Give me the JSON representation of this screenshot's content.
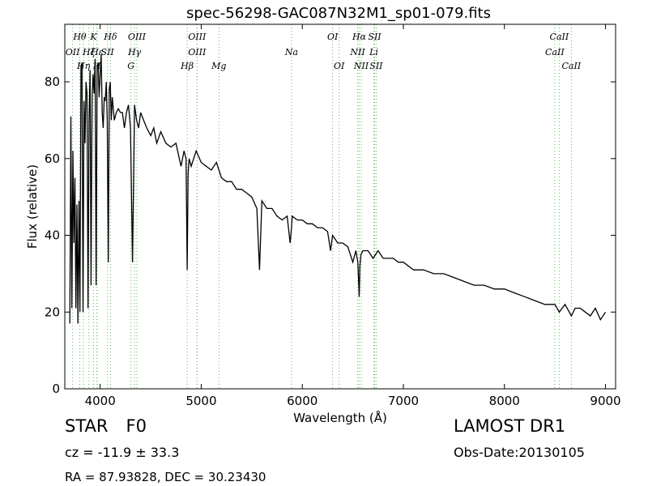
{
  "chart_data": {
    "type": "line",
    "title": "spec-56298-GAC087N32M1_sp01-079.fits",
    "xlabel": "Wavelength (Å)",
    "ylabel": "Flux (relative)",
    "xlim": [
      3650,
      9100
    ],
    "ylim": [
      0,
      95
    ],
    "xticks": [
      4000,
      5000,
      6000,
      7000,
      8000,
      9000
    ],
    "yticks": [
      0,
      20,
      40,
      60,
      80
    ],
    "grid": false,
    "series": [
      {
        "color": "#000000",
        "x": [
          3700,
          3710,
          3720,
          3730,
          3740,
          3750,
          3760,
          3770,
          3780,
          3790,
          3800,
          3810,
          3820,
          3830,
          3840,
          3850,
          3860,
          3870,
          3880,
          3890,
          3900,
          3910,
          3920,
          3930,
          3940,
          3950,
          3960,
          3970,
          3980,
          3990,
          4000,
          4010,
          4020,
          4030,
          4040,
          4050,
          4060,
          4070,
          4080,
          4090,
          4100,
          4110,
          4120,
          4140,
          4160,
          4180,
          4200,
          4220,
          4240,
          4260,
          4280,
          4300,
          4320,
          4340,
          4360,
          4380,
          4400,
          4430,
          4460,
          4500,
          4530,
          4560,
          4600,
          4650,
          4700,
          4750,
          4800,
          4830,
          4850,
          4861,
          4870,
          4880,
          4900,
          4950,
          5000,
          5050,
          5100,
          5150,
          5200,
          5250,
          5300,
          5350,
          5400,
          5450,
          5500,
          5550,
          5577,
          5600,
          5650,
          5700,
          5750,
          5800,
          5850,
          5880,
          5893,
          5900,
          5950,
          6000,
          6050,
          6100,
          6150,
          6200,
          6250,
          6280,
          6300,
          6350,
          6400,
          6450,
          6500,
          6530,
          6550,
          6563,
          6570,
          6580,
          6600,
          6650,
          6700,
          6750,
          6800,
          6850,
          6900,
          6950,
          7000,
          7100,
          7200,
          7300,
          7400,
          7500,
          7600,
          7700,
          7800,
          7900,
          8000,
          8100,
          8200,
          8300,
          8400,
          8500,
          8542,
          8600,
          8662,
          8700,
          8750,
          8800,
          8850,
          8900,
          8950,
          9000
        ],
        "y": [
          17,
          71,
          21,
          62,
          38,
          55,
          21,
          48,
          17,
          49,
          20,
          84,
          85,
          20,
          75,
          64,
          80,
          77,
          21,
          70,
          83,
          27,
          76,
          82,
          77,
          86,
          27,
          84,
          85,
          76,
          82,
          87,
          72,
          68,
          76,
          75,
          80,
          70,
          33,
          78,
          80,
          70,
          76,
          70,
          72,
          73,
          72,
          72,
          68,
          72,
          74,
          68,
          33,
          74,
          70,
          68,
          72,
          70,
          68,
          66,
          68,
          64,
          67,
          64,
          63,
          64,
          58,
          62,
          60,
          31,
          56,
          60,
          58,
          62,
          59,
          58,
          57,
          59,
          55,
          54,
          54,
          52,
          52,
          51,
          50,
          47,
          31,
          49,
          47,
          47,
          45,
          44,
          45,
          38,
          42,
          45,
          44,
          44,
          43,
          43,
          42,
          42,
          41,
          36,
          40,
          38,
          38,
          37,
          33,
          36,
          33,
          24,
          32,
          35,
          36,
          36,
          34,
          36,
          34,
          34,
          34,
          33,
          33,
          31,
          31,
          30,
          30,
          29,
          28,
          27,
          27,
          26,
          26,
          25,
          24,
          23,
          22,
          22,
          20,
          22,
          19,
          21,
          21,
          20,
          19,
          21,
          18,
          20
        ]
      }
    ],
    "annotations": [
      {
        "label": "OII",
        "x": 3727,
        "row": "upper"
      },
      {
        "label": "Hθ",
        "x": 3798,
        "row": "top"
      },
      {
        "label": "Hη",
        "x": 3835,
        "row": "lower"
      },
      {
        "label": "Hζ",
        "x": 3889,
        "row": "mid"
      },
      {
        "label": "K",
        "x": 3934,
        "row": "top"
      },
      {
        "label": "Hε",
        "x": 3970,
        "row": "mid"
      },
      {
        "label": "SII",
        "x": 4072,
        "row": "mid"
      },
      {
        "label": "H",
        "x": 3968,
        "row": "lower"
      },
      {
        "label": "Hδ",
        "x": 4102,
        "row": "top"
      },
      {
        "label": "OIII",
        "x": 4363,
        "row": "top"
      },
      {
        "label": "Hγ",
        "x": 4340,
        "row": "mid"
      },
      {
        "label": "G",
        "x": 4304,
        "row": "lower"
      },
      {
        "label": "OIII",
        "x": 4959,
        "row": "top"
      },
      {
        "label": "OIII",
        "x": 4959,
        "row": "mid"
      },
      {
        "label": "Hβ",
        "x": 4861,
        "row": "lower"
      },
      {
        "label": "Mg",
        "x": 5175,
        "row": "lower"
      },
      {
        "label": "Na",
        "x": 5893,
        "row": "mid"
      },
      {
        "label": "OI",
        "x": 6300,
        "row": "top"
      },
      {
        "label": "OI",
        "x": 6364,
        "row": "lower"
      },
      {
        "label": "Hα",
        "x": 6563,
        "row": "top"
      },
      {
        "label": "SII",
        "x": 6716,
        "row": "top"
      },
      {
        "label": "NII",
        "x": 6548,
        "row": "mid"
      },
      {
        "label": "Li",
        "x": 6708,
        "row": "mid"
      },
      {
        "label": "NII",
        "x": 6583,
        "row": "lower"
      },
      {
        "label": "SII",
        "x": 6731,
        "row": "lower"
      },
      {
        "label": "CaII",
        "x": 8542,
        "row": "top"
      },
      {
        "label": "CaII",
        "x": 8498,
        "row": "mid"
      },
      {
        "label": "CaII",
        "x": 8662,
        "row": "lower"
      }
    ],
    "line_color": "#5cb85c"
  },
  "info": {
    "class": "STAR",
    "subclass": "F0",
    "survey": "LAMOST DR1",
    "cz": "cz = -11.9 ± 33.3",
    "obs_date": "Obs-Date:20130105",
    "radec": "RA = 87.93828, DEC = 30.23430"
  }
}
